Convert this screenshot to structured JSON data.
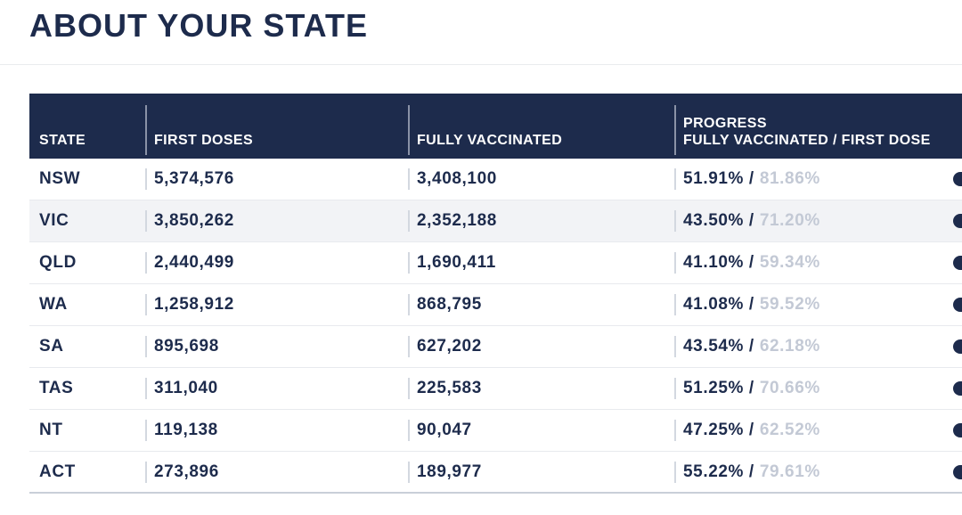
{
  "page": {
    "title": "ABOUT YOUR STATE"
  },
  "colors": {
    "navy": "#1d2b4c",
    "muted": "#c3c9d5",
    "highlight-bg": "#f2f3f6"
  },
  "table": {
    "columns": {
      "state": "STATE",
      "first_doses": "FIRST DOSES",
      "fully_vaccinated": "FULLY VACCINATED",
      "progress_line1": "PROGRESS",
      "progress_line2": "FULLY VACCINATED / FIRST DOSE"
    },
    "highlighted_row": 1,
    "rows": [
      {
        "state": "NSW",
        "first_doses": "5,374,576",
        "fully_vaccinated": "3,408,100",
        "progress_fully": "51.91% /",
        "progress_first": "81.86%"
      },
      {
        "state": "VIC",
        "first_doses": "3,850,262",
        "fully_vaccinated": "2,352,188",
        "progress_fully": "43.50% /",
        "progress_first": "71.20%"
      },
      {
        "state": "QLD",
        "first_doses": "2,440,499",
        "fully_vaccinated": "1,690,411",
        "progress_fully": "41.10% /",
        "progress_first": "59.34%"
      },
      {
        "state": "WA",
        "first_doses": "1,258,912",
        "fully_vaccinated": "868,795",
        "progress_fully": "41.08% /",
        "progress_first": "59.52%"
      },
      {
        "state": "SA",
        "first_doses": "895,698",
        "fully_vaccinated": "627,202",
        "progress_fully": "43.54% /",
        "progress_first": "62.18%"
      },
      {
        "state": "TAS",
        "first_doses": "311,040",
        "fully_vaccinated": "225,583",
        "progress_fully": "51.25% /",
        "progress_first": "70.66%"
      },
      {
        "state": "NT",
        "first_doses": "119,138",
        "fully_vaccinated": "90,047",
        "progress_fully": "47.25% /",
        "progress_first": "62.52%"
      },
      {
        "state": "ACT",
        "first_doses": "273,896",
        "fully_vaccinated": "189,977",
        "progress_fully": "55.22% /",
        "progress_first": "79.61%"
      }
    ]
  }
}
